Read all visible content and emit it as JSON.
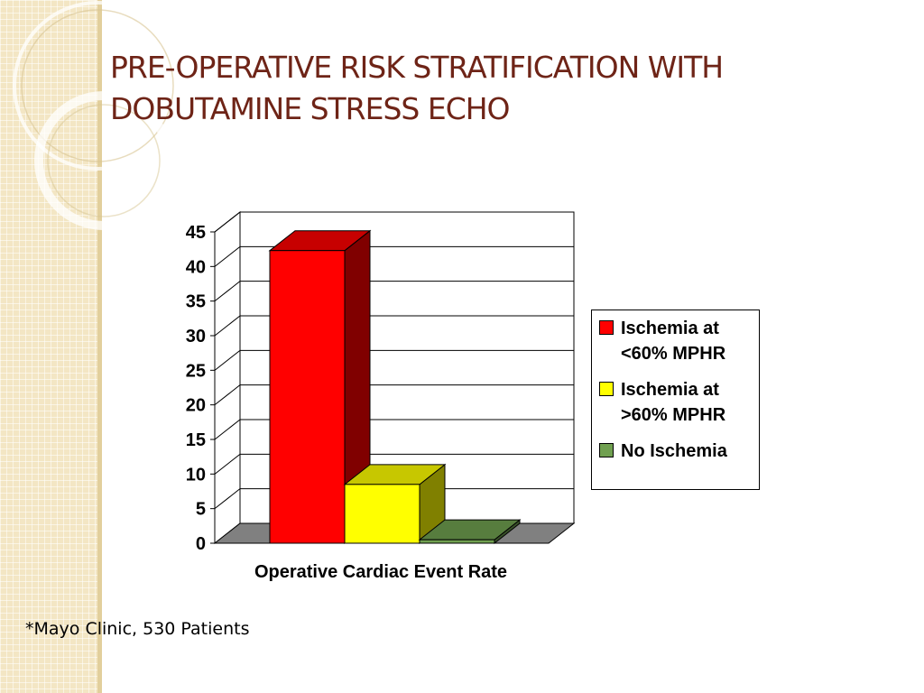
{
  "slide": {
    "title_lines": [
      "PRE-OPERATIVE RISK STRATIFICATION WITH",
      "DOBUTAMINE STRESS ECHO"
    ],
    "footnote": "*Mayo Clinic, 530 Patients",
    "title_color": "#6e2417"
  },
  "chart_data": {
    "type": "bar",
    "title": "",
    "categories": [
      "Operative Cardiac Event Rate"
    ],
    "xlabel": "Operative Cardiac Event Rate",
    "ylabel": "",
    "ylim": [
      0,
      45
    ],
    "yticks": [
      0,
      5,
      10,
      15,
      20,
      25,
      30,
      35,
      40,
      45
    ],
    "grid": true,
    "legend_position": "right",
    "series": [
      {
        "name": "Ischemia at <60% MPHR",
        "values": [
          42.3
        ],
        "color": "#ff0000"
      },
      {
        "name": "Ischemia at >60% MPHR",
        "values": [
          8.5
        ],
        "color": "#ffff00"
      },
      {
        "name": "No Ischemia",
        "values": [
          0.5
        ],
        "color": "#70a050"
      }
    ]
  }
}
